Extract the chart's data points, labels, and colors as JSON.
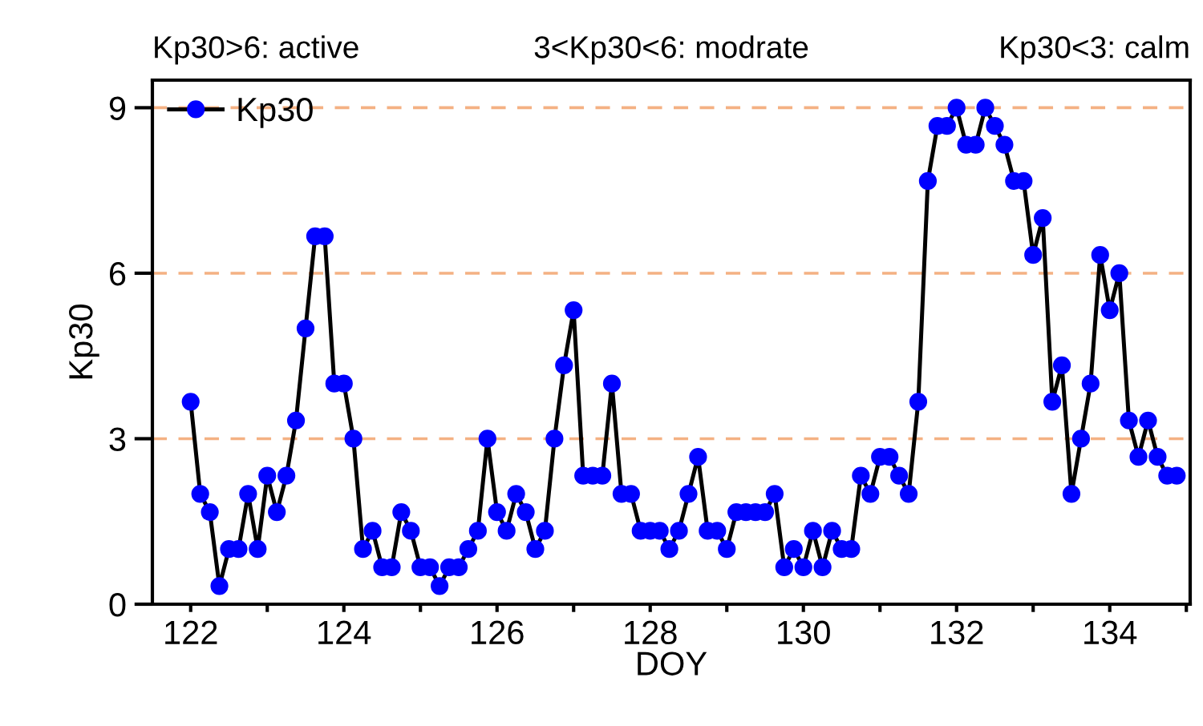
{
  "chart_data": {
    "type": "line",
    "xlabel": "DOY",
    "ylabel": "Kp30",
    "annotations": [
      "Kp30>6: active",
      "3<Kp30<6: modrate",
      "Kp30<3: calm"
    ],
    "x": [
      122,
      122.125,
      122.25,
      122.375,
      122.5,
      122.625,
      122.75,
      122.875,
      123,
      123.125,
      123.25,
      123.375,
      123.5,
      123.625,
      123.75,
      123.875,
      124,
      124.125,
      124.25,
      124.375,
      124.5,
      124.625,
      124.75,
      124.875,
      125,
      125.125,
      125.25,
      125.375,
      125.5,
      125.625,
      125.75,
      125.875,
      126,
      126.125,
      126.25,
      126.375,
      126.5,
      126.625,
      126.75,
      126.875,
      127,
      127.125,
      127.25,
      127.375,
      127.5,
      127.625,
      127.75,
      127.875,
      128,
      128.125,
      128.25,
      128.375,
      128.5,
      128.625,
      128.75,
      128.875,
      129,
      129.125,
      129.25,
      129.375,
      129.5,
      129.625,
      129.75,
      129.875,
      130,
      130.125,
      130.25,
      130.375,
      130.5,
      130.625,
      130.75,
      130.875,
      131,
      131.125,
      131.25,
      131.375,
      131.5,
      131.625,
      131.75,
      131.875,
      132,
      132.125,
      132.25,
      132.375,
      132.5,
      132.625,
      132.75,
      132.875,
      133,
      133.125,
      133.25,
      133.375,
      133.5,
      133.625,
      133.75,
      133.875,
      134,
      134.125,
      134.25,
      134.375,
      134.5,
      134.625,
      134.75,
      134.875
    ],
    "series": [
      {
        "name": "Kp30",
        "color": "#0000ff",
        "values": [
          3.67,
          2,
          1.67,
          0.33,
          1,
          1,
          2,
          1,
          2.33,
          1.67,
          2.33,
          3.33,
          5,
          6.67,
          6.67,
          4,
          4,
          3,
          1,
          1.33,
          0.67,
          0.67,
          1.67,
          1.33,
          0.67,
          0.67,
          0.33,
          0.67,
          0.67,
          1,
          1.33,
          3,
          1.67,
          1.33,
          2,
          1.67,
          1,
          1.33,
          3,
          4.33,
          5.33,
          2.33,
          2.33,
          2.33,
          4,
          2,
          2,
          1.33,
          1.33,
          1.33,
          1,
          1.33,
          2,
          2.67,
          1.33,
          1.33,
          1,
          1.67,
          1.67,
          1.67,
          1.67,
          2,
          0.67,
          1,
          0.67,
          1.33,
          0.67,
          1.33,
          1,
          1,
          2.33,
          2,
          2.67,
          2.67,
          2.33,
          2,
          3.67,
          7.67,
          8.67,
          8.67,
          9,
          8.33,
          8.33,
          9,
          8.67,
          8.33,
          7.67,
          7.67,
          6.33,
          7,
          3.67,
          4.33,
          2,
          3,
          4,
          6.33,
          5.33,
          6,
          3.33,
          2.67,
          3.33,
          2.67,
          2.33,
          2.33
        ]
      }
    ],
    "xlim": [
      121.5,
      135.05
    ],
    "xticks": [
      122,
      {
        "value": 123,
        "label": null
      },
      124,
      {
        "value": 125,
        "label": null
      },
      126,
      {
        "value": 127,
        "label": null
      },
      128,
      {
        "value": 129,
        "label": null
      },
      130,
      {
        "value": 131,
        "label": null
      },
      132,
      {
        "value": 133,
        "label": null
      },
      134,
      {
        "value": 135,
        "label": null
      }
    ],
    "ylim": [
      0,
      9.5
    ],
    "yticks": [
      0,
      3,
      6,
      9
    ],
    "ref_lines": [
      {
        "axis": "y",
        "value": 3,
        "color": "#f4b183",
        "line_style": "dashed"
      },
      {
        "axis": "y",
        "value": 6,
        "color": "#f4b183",
        "line_style": "dashed"
      },
      {
        "axis": "y",
        "value": 9,
        "color": "#f4b183",
        "line_style": "dashed"
      }
    ],
    "marker": "circle",
    "line_style": "solid",
    "legend": "top left",
    "grid": false
  }
}
